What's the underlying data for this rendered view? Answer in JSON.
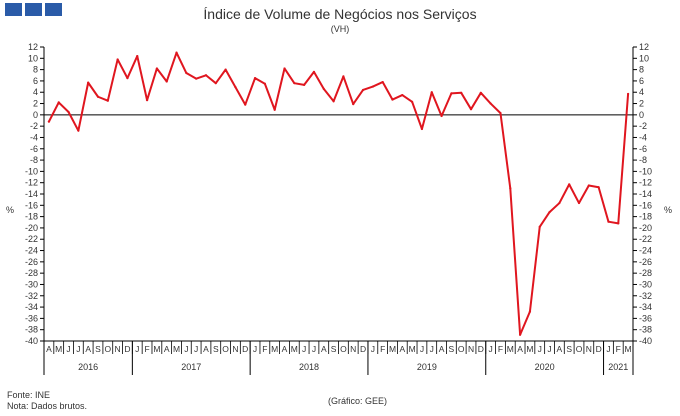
{
  "header": {
    "logo_colors": [
      "#2a5ba8",
      "#2a5ba8",
      "#2a5ba8"
    ]
  },
  "footer": {
    "source": "Fonte: INE",
    "note": "Nota: Dados brutos.",
    "credit": "(Gráfico: GEE)"
  },
  "chart_data": {
    "type": "line",
    "title": "Índice de Volume de Negócios nos Serviços",
    "subtitle": "(VH)",
    "ylabel_left": "%",
    "ylabel_right": "%",
    "ylim": [
      -40,
      12
    ],
    "ytick_step": 2,
    "grid": false,
    "line_color": "#e0161f",
    "months": [
      "A",
      "M",
      "J",
      "J",
      "A",
      "S",
      "O",
      "N",
      "D",
      "J",
      "F",
      "M",
      "A",
      "M",
      "J",
      "J",
      "A",
      "S",
      "O",
      "N",
      "D",
      "J",
      "F",
      "M",
      "A",
      "M",
      "J",
      "J",
      "A",
      "S",
      "O",
      "N",
      "D",
      "J",
      "F",
      "M",
      "A",
      "M",
      "J",
      "J",
      "A",
      "S",
      "O",
      "N",
      "D",
      "J",
      "F",
      "M",
      "A",
      "M",
      "J",
      "J",
      "A",
      "S",
      "O",
      "N",
      "D",
      "J",
      "F",
      "M"
    ],
    "years": [
      {
        "label": "2016",
        "start": 0,
        "end": 8
      },
      {
        "label": "2017",
        "start": 9,
        "end": 20
      },
      {
        "label": "2018",
        "start": 21,
        "end": 32
      },
      {
        "label": "2019",
        "start": 33,
        "end": 44
      },
      {
        "label": "2020",
        "start": 45,
        "end": 56
      },
      {
        "label": "2021",
        "start": 57,
        "end": 59
      }
    ],
    "series": [
      {
        "values": [
          -1.2,
          2.2,
          0.5,
          -2.8,
          5.7,
          3.2,
          2.5,
          9.8,
          6.5,
          10.4,
          2.6,
          8.2,
          5.9,
          11.0,
          7.4,
          6.4,
          7.0,
          5.6,
          8.0,
          4.9,
          1.8,
          6.5,
          5.5,
          0.9,
          8.2,
          5.6,
          5.3,
          7.6,
          4.6,
          2.4,
          6.8,
          1.9,
          4.4,
          5.0,
          5.8,
          2.7,
          3.5,
          2.3,
          -2.5,
          4.0,
          -0.2,
          3.8,
          3.9,
          1.0,
          3.9,
          2.0,
          0.3,
          -13.0,
          -38.9,
          -34.8,
          -19.8,
          -17.2,
          -15.6,
          -12.3,
          -15.6,
          -12.5,
          -12.8,
          -18.9,
          -19.2,
          3.7
        ]
      }
    ]
  }
}
